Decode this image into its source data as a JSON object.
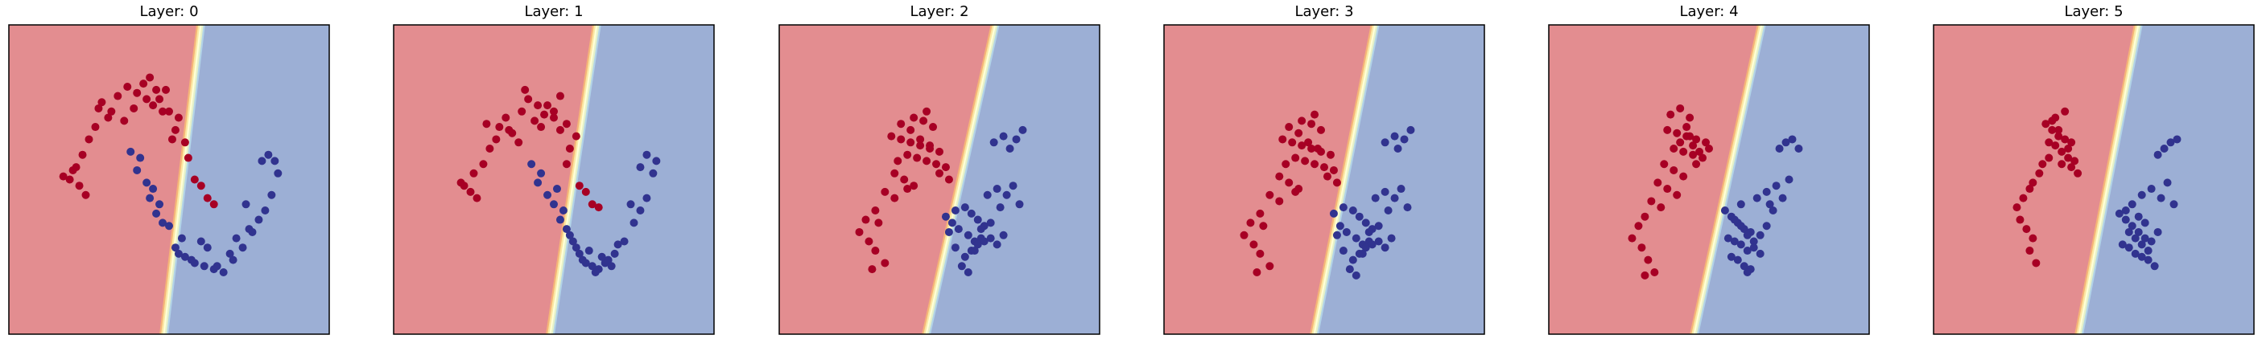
{
  "figure": {
    "colors": {
      "region_class0": "#e38d90",
      "region_class1": "#9cafd5",
      "points_class0": "#a70024",
      "points_class1": "#31338f",
      "boundary_band": [
        "#f5b578",
        "#fbe7a2",
        "#ffffd7",
        "#e5f1c9",
        "#b2d3e7"
      ]
    }
  },
  "chart_data": [
    {
      "type": "scatter",
      "title": "Layer: 0",
      "xlabel": "",
      "ylabel": "",
      "xlim": [
        0,
        1
      ],
      "ylim": [
        0,
        1
      ],
      "axis_ticks": "hidden",
      "grid": false,
      "legend": "none",
      "boundary": {
        "top_x": 0.585,
        "bottom_x": 0.47
      },
      "series": [
        {
          "x": [
            0.29,
            0.34,
            0.4,
            0.45,
            0.5,
            0.37,
            0.42,
            0.47,
            0.31,
            0.27,
            0.25,
            0.23,
            0.21,
            0.19,
            0.17,
            0.2,
            0.22,
            0.24,
            0.28,
            0.32,
            0.36,
            0.44,
            0.49,
            0.53,
            0.55,
            0.52,
            0.56,
            0.58,
            0.6,
            0.62,
            0.64,
            0.48,
            0.46,
            0.51,
            0.43,
            0.39
          ],
          "y": [
            0.75,
            0.77,
            0.78,
            0.74,
            0.72,
            0.8,
            0.81,
            0.76,
            0.7,
            0.67,
            0.63,
            0.58,
            0.54,
            0.5,
            0.51,
            0.53,
            0.48,
            0.45,
            0.73,
            0.72,
            0.69,
            0.83,
            0.79,
            0.7,
            0.62,
            0.66,
            0.57,
            0.5,
            0.48,
            0.44,
            0.42,
            0.72,
            0.79,
            0.63,
            0.76,
            0.73
          ]
        },
        {
          "x": [
            0.41,
            0.38,
            0.43,
            0.4,
            0.44,
            0.46,
            0.48,
            0.5,
            0.52,
            0.55,
            0.58,
            0.61,
            0.64,
            0.67,
            0.7,
            0.73,
            0.75,
            0.78,
            0.8,
            0.82,
            0.84,
            0.79,
            0.81,
            0.83,
            0.74,
            0.71,
            0.62,
            0.57,
            0.54,
            0.47,
            0.69,
            0.76,
            0.6,
            0.65,
            0.53,
            0.45
          ],
          "y": [
            0.57,
            0.59,
            0.49,
            0.53,
            0.44,
            0.39,
            0.36,
            0.35,
            0.28,
            0.25,
            0.23,
            0.22,
            0.21,
            0.2,
            0.24,
            0.28,
            0.34,
            0.37,
            0.4,
            0.45,
            0.52,
            0.56,
            0.58,
            0.56,
            0.42,
            0.31,
            0.28,
            0.24,
            0.31,
            0.42,
            0.26,
            0.33,
            0.3,
            0.22,
            0.26,
            0.47
          ]
        }
      ]
    },
    {
      "type": "scatter",
      "title": "Layer: 1",
      "xlabel": "",
      "ylabel": "",
      "xlim": [
        0,
        1
      ],
      "ylim": [
        0,
        1
      ],
      "axis_ticks": "hidden",
      "grid": false,
      "legend": "none",
      "boundary": {
        "top_x": 0.62,
        "bottom_x": 0.475
      },
      "series": [
        {
          "x": [
            0.35,
            0.4,
            0.45,
            0.5,
            0.54,
            0.42,
            0.47,
            0.52,
            0.36,
            0.32,
            0.3,
            0.28,
            0.25,
            0.22,
            0.21,
            0.24,
            0.26,
            0.29,
            0.33,
            0.37,
            0.41,
            0.48,
            0.52,
            0.55,
            0.57,
            0.54,
            0.58,
            0.6,
            0.62,
            0.64,
            0.46,
            0.5,
            0.44,
            0.39
          ],
          "y": [
            0.7,
            0.72,
            0.74,
            0.7,
            0.68,
            0.76,
            0.71,
            0.77,
            0.66,
            0.63,
            0.6,
            0.55,
            0.52,
            0.48,
            0.49,
            0.46,
            0.44,
            0.68,
            0.67,
            0.65,
            0.79,
            0.74,
            0.66,
            0.6,
            0.64,
            0.55,
            0.48,
            0.46,
            0.42,
            0.41,
            0.67,
            0.72,
            0.69,
            0.62
          ]
        },
        {
          "x": [
            0.46,
            0.43,
            0.48,
            0.45,
            0.5,
            0.52,
            0.54,
            0.56,
            0.58,
            0.6,
            0.62,
            0.64,
            0.66,
            0.69,
            0.72,
            0.75,
            0.77,
            0.79,
            0.81,
            0.82,
            0.79,
            0.77,
            0.74,
            0.7,
            0.67,
            0.63,
            0.59,
            0.57,
            0.61,
            0.65,
            0.55,
            0.53,
            0.68,
            0.51
          ],
          "y": [
            0.52,
            0.55,
            0.45,
            0.49,
            0.42,
            0.37,
            0.34,
            0.3,
            0.26,
            0.23,
            0.22,
            0.21,
            0.23,
            0.26,
            0.3,
            0.36,
            0.4,
            0.44,
            0.52,
            0.56,
            0.58,
            0.54,
            0.42,
            0.29,
            0.24,
            0.2,
            0.24,
            0.28,
            0.27,
            0.25,
            0.32,
            0.4,
            0.22,
            0.47
          ]
        }
      ]
    },
    {
      "type": "scatter",
      "title": "Layer: 2",
      "xlabel": "",
      "ylabel": "",
      "xlim": [
        0,
        1
      ],
      "ylim": [
        0,
        1
      ],
      "axis_ticks": "hidden",
      "grid": false,
      "legend": "none",
      "boundary": {
        "top_x": 0.66,
        "bottom_x": 0.445
      },
      "series": [
        {
          "x": [
            0.35,
            0.38,
            0.41,
            0.44,
            0.47,
            0.5,
            0.4,
            0.43,
            0.46,
            0.49,
            0.52,
            0.38,
            0.42,
            0.45,
            0.48,
            0.36,
            0.39,
            0.42,
            0.33,
            0.36,
            0.3,
            0.27,
            0.25,
            0.28,
            0.3,
            0.33,
            0.29,
            0.31,
            0.44,
            0.47,
            0.4,
            0.37,
            0.5,
            0.53,
            0.46,
            0.41
          ],
          "y": [
            0.64,
            0.63,
            0.62,
            0.61,
            0.6,
            0.59,
            0.58,
            0.57,
            0.56,
            0.55,
            0.54,
            0.68,
            0.7,
            0.69,
            0.67,
            0.52,
            0.5,
            0.48,
            0.46,
            0.44,
            0.4,
            0.37,
            0.33,
            0.3,
            0.27,
            0.23,
            0.21,
            0.36,
            0.63,
            0.61,
            0.47,
            0.56,
            0.52,
            0.5,
            0.72,
            0.66
          ]
        },
        {
          "x": [
            0.52,
            0.55,
            0.58,
            0.6,
            0.62,
            0.64,
            0.66,
            0.53,
            0.56,
            0.59,
            0.61,
            0.63,
            0.58,
            0.6,
            0.62,
            0.64,
            0.66,
            0.68,
            0.7,
            0.65,
            0.68,
            0.71,
            0.73,
            0.75,
            0.67,
            0.7,
            0.74,
            0.76,
            0.72,
            0.55,
            0.57,
            0.59,
            0.61,
            0.54,
            0.63,
            0.69
          ],
          "y": [
            0.38,
            0.4,
            0.41,
            0.39,
            0.37,
            0.35,
            0.36,
            0.33,
            0.34,
            0.32,
            0.3,
            0.31,
            0.25,
            0.27,
            0.29,
            0.3,
            0.31,
            0.29,
            0.32,
            0.45,
            0.47,
            0.45,
            0.48,
            0.42,
            0.62,
            0.64,
            0.63,
            0.66,
            0.6,
            0.28,
            0.22,
            0.2,
            0.27,
            0.36,
            0.34,
            0.41
          ]
        }
      ]
    },
    {
      "type": "scatter",
      "title": "Layer: 3",
      "xlabel": "",
      "ylabel": "",
      "xlim": [
        0,
        1
      ],
      "ylim": [
        0,
        1
      ],
      "axis_ticks": "hidden",
      "grid": false,
      "legend": "none",
      "boundary": {
        "top_x": 0.645,
        "bottom_x": 0.455
      },
      "series": [
        {
          "x": [
            0.37,
            0.4,
            0.43,
            0.46,
            0.49,
            0.52,
            0.41,
            0.44,
            0.47,
            0.5,
            0.53,
            0.39,
            0.43,
            0.46,
            0.49,
            0.36,
            0.39,
            0.42,
            0.33,
            0.36,
            0.3,
            0.27,
            0.25,
            0.28,
            0.3,
            0.33,
            0.29,
            0.31,
            0.45,
            0.48,
            0.41,
            0.38,
            0.51,
            0.54,
            0.47,
            0.42
          ],
          "y": [
            0.63,
            0.62,
            0.61,
            0.6,
            0.59,
            0.58,
            0.57,
            0.56,
            0.55,
            0.54,
            0.53,
            0.67,
            0.69,
            0.68,
            0.66,
            0.51,
            0.49,
            0.47,
            0.45,
            0.43,
            0.39,
            0.36,
            0.32,
            0.29,
            0.26,
            0.22,
            0.2,
            0.35,
            0.62,
            0.6,
            0.46,
            0.55,
            0.51,
            0.49,
            0.71,
            0.65
          ]
        },
        {
          "x": [
            0.53,
            0.56,
            0.59,
            0.61,
            0.63,
            0.65,
            0.67,
            0.54,
            0.57,
            0.6,
            0.62,
            0.64,
            0.59,
            0.61,
            0.63,
            0.65,
            0.67,
            0.69,
            0.71,
            0.66,
            0.69,
            0.72,
            0.74,
            0.76,
            0.69,
            0.72,
            0.75,
            0.77,
            0.73,
            0.56,
            0.58,
            0.6,
            0.62,
            0.55,
            0.64,
            0.7
          ],
          "y": [
            0.39,
            0.41,
            0.4,
            0.38,
            0.36,
            0.34,
            0.35,
            0.32,
            0.33,
            0.31,
            0.29,
            0.3,
            0.24,
            0.26,
            0.28,
            0.29,
            0.3,
            0.28,
            0.31,
            0.44,
            0.46,
            0.44,
            0.47,
            0.41,
            0.62,
            0.64,
            0.63,
            0.66,
            0.6,
            0.27,
            0.21,
            0.19,
            0.26,
            0.35,
            0.33,
            0.4
          ]
        }
      ]
    },
    {
      "type": "scatter",
      "title": "Layer: 4",
      "xlabel": "",
      "ylabel": "",
      "xlim": [
        0,
        1
      ],
      "ylim": [
        0,
        1
      ],
      "axis_ticks": "hidden",
      "grid": false,
      "legend": "none",
      "boundary": {
        "top_x": 0.65,
        "bottom_x": 0.44
      },
      "series": [
        {
          "x": [
            0.37,
            0.4,
            0.43,
            0.46,
            0.49,
            0.39,
            0.42,
            0.45,
            0.48,
            0.38,
            0.41,
            0.44,
            0.36,
            0.39,
            0.42,
            0.34,
            0.37,
            0.4,
            0.32,
            0.35,
            0.3,
            0.28,
            0.26,
            0.29,
            0.31,
            0.33,
            0.3,
            0.45,
            0.47,
            0.43,
            0.41,
            0.5,
            0.46,
            0.44
          ],
          "y": [
            0.66,
            0.65,
            0.64,
            0.63,
            0.62,
            0.6,
            0.59,
            0.58,
            0.57,
            0.71,
            0.73,
            0.7,
            0.55,
            0.53,
            0.51,
            0.49,
            0.47,
            0.45,
            0.43,
            0.41,
            0.38,
            0.35,
            0.31,
            0.28,
            0.24,
            0.2,
            0.19,
            0.61,
            0.59,
            0.67,
            0.62,
            0.6,
            0.55,
            0.64
          ]
        },
        {
          "x": [
            0.55,
            0.57,
            0.59,
            0.61,
            0.63,
            0.56,
            0.58,
            0.6,
            0.62,
            0.57,
            0.59,
            0.61,
            0.63,
            0.58,
            0.6,
            0.62,
            0.64,
            0.66,
            0.68,
            0.7,
            0.65,
            0.68,
            0.71,
            0.73,
            0.75,
            0.72,
            0.74,
            0.76,
            0.78,
            0.69,
            0.64,
            0.66,
            0.6,
            0.62
          ],
          "y": [
            0.4,
            0.38,
            0.36,
            0.34,
            0.33,
            0.31,
            0.3,
            0.29,
            0.27,
            0.25,
            0.24,
            0.22,
            0.21,
            0.37,
            0.35,
            0.32,
            0.3,
            0.32,
            0.35,
            0.4,
            0.44,
            0.46,
            0.48,
            0.44,
            0.5,
            0.6,
            0.62,
            0.63,
            0.6,
            0.42,
            0.28,
            0.26,
            0.42,
            0.2
          ]
        }
      ]
    },
    {
      "type": "scatter",
      "title": "Layer: 5",
      "xlabel": "",
      "ylabel": "",
      "xlim": [
        0,
        1
      ],
      "ylim": [
        0,
        1
      ],
      "axis_ticks": "hidden",
      "grid": false,
      "legend": "none",
      "boundary": {
        "top_x": 0.625,
        "bottom_x": 0.44
      },
      "series": [
        {
          "x": [
            0.35,
            0.37,
            0.39,
            0.41,
            0.43,
            0.36,
            0.38,
            0.4,
            0.42,
            0.44,
            0.38,
            0.41,
            0.36,
            0.34,
            0.33,
            0.31,
            0.3,
            0.28,
            0.26,
            0.27,
            0.29,
            0.31,
            0.3,
            0.32,
            0.4,
            0.43,
            0.45,
            0.39,
            0.37,
            0.42
          ],
          "y": [
            0.68,
            0.66,
            0.64,
            0.63,
            0.62,
            0.62,
            0.61,
            0.59,
            0.57,
            0.56,
            0.7,
            0.72,
            0.57,
            0.55,
            0.52,
            0.49,
            0.47,
            0.44,
            0.41,
            0.37,
            0.34,
            0.31,
            0.27,
            0.23,
            0.55,
            0.54,
            0.52,
            0.66,
            0.69,
            0.6
          ]
        },
        {
          "x": [
            0.58,
            0.6,
            0.62,
            0.64,
            0.66,
            0.59,
            0.61,
            0.63,
            0.65,
            0.6,
            0.62,
            0.64,
            0.66,
            0.61,
            0.63,
            0.65,
            0.67,
            0.68,
            0.7,
            0.65,
            0.68,
            0.71,
            0.73,
            0.75,
            0.7,
            0.72,
            0.74,
            0.76,
            0.67,
            0.69
          ],
          "y": [
            0.39,
            0.37,
            0.35,
            0.33,
            0.31,
            0.29,
            0.28,
            0.26,
            0.25,
            0.4,
            0.42,
            0.38,
            0.36,
            0.33,
            0.31,
            0.29,
            0.27,
            0.3,
            0.33,
            0.45,
            0.47,
            0.44,
            0.49,
            0.42,
            0.58,
            0.6,
            0.62,
            0.63,
            0.24,
            0.22
          ]
        }
      ]
    }
  ]
}
